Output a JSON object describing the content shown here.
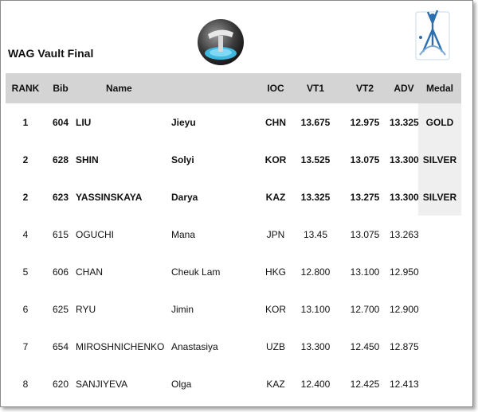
{
  "title": "WAG Vault Final",
  "columns": {
    "rank": "RANK",
    "bib": "Bib",
    "name": "Name",
    "ioc": "IOC",
    "vt1": "VT1",
    "vt2": "VT2",
    "adv": "ADV",
    "medal": "Medal"
  },
  "rows": [
    {
      "rank": "1",
      "bib": "604",
      "last": "LIU",
      "first": "Jieyu",
      "ioc": "CHN",
      "vt1": "13.675",
      "vt2": "12.975",
      "adv": "13.325",
      "medal": "GOLD"
    },
    {
      "rank": "2",
      "bib": "628",
      "last": "SHIN",
      "first": "Solyi",
      "ioc": "KOR",
      "vt1": "13.525",
      "vt2": "13.075",
      "adv": "13.300",
      "medal": "SILVER"
    },
    {
      "rank": "2",
      "bib": "623",
      "last": "YASSINSKAYA",
      "first": "Darya",
      "ioc": "KAZ",
      "vt1": "13.325",
      "vt2": "13.275",
      "adv": "13.300",
      "medal": "SILVER"
    },
    {
      "rank": "4",
      "bib": "615",
      "last": "OGUCHI",
      "first": "Mana",
      "ioc": "JPN",
      "vt1": "13.45",
      "vt2": "13.075",
      "adv": "13.263",
      "medal": ""
    },
    {
      "rank": "5",
      "bib": "606",
      "last": "CHAN",
      "first": "Cheuk Lam",
      "ioc": "HKG",
      "vt1": "12.800",
      "vt2": "13.100",
      "adv": "12.950",
      "medal": ""
    },
    {
      "rank": "6",
      "bib": "625",
      "last": "RYU",
      "first": "Jimin",
      "ioc": "KOR",
      "vt1": "13.100",
      "vt2": "12.700",
      "adv": "12.900",
      "medal": ""
    },
    {
      "rank": "7",
      "bib": "654",
      "last": "MIROSHNICHENKO",
      "first": "Anastasiya",
      "ioc": "UZB",
      "vt1": "13.300",
      "vt2": "12.450",
      "adv": "12.875",
      "medal": ""
    },
    {
      "rank": "8",
      "bib": "620",
      "last": "SANJIYEVA",
      "first": "Olga",
      "ioc": "KAZ",
      "vt1": "12.400",
      "vt2": "12.425",
      "adv": "12.413",
      "medal": ""
    }
  ]
}
